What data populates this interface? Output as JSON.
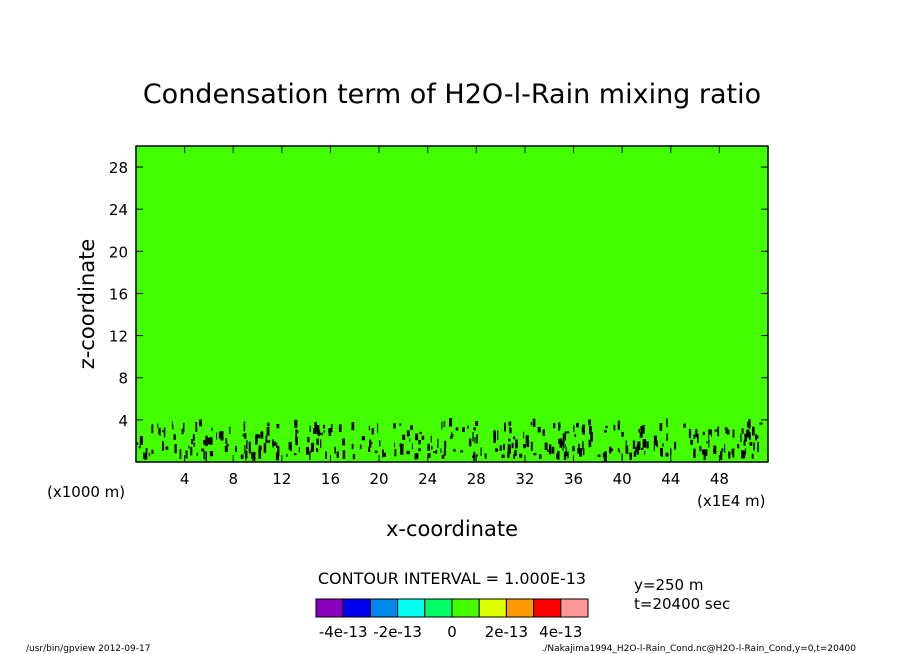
{
  "chart_data": {
    "type": "heatmap",
    "title": "Condensation term of H2O-l-Rain mixing ratio",
    "xlabel": "x-coordinate",
    "ylabel": "z-coordinate",
    "x_unit_left": "(x1000 m)",
    "x_unit_right": "(x1E4 m)",
    "xlim": [
      0,
      52
    ],
    "ylim": [
      0,
      30
    ],
    "x_ticks": [
      4,
      8,
      12,
      16,
      20,
      24,
      28,
      32,
      36,
      40,
      44,
      48
    ],
    "y_ticks": [
      4,
      8,
      12,
      16,
      20,
      24,
      28
    ],
    "field_value": 0,
    "field_color": "#44ff00",
    "cell_color": "#000000",
    "active_band_z": [
      0.5,
      3.8
    ],
    "contour_interval_label": "CONTOUR INTERVAL = 1.000E-13",
    "colorbar": {
      "colors": [
        "#8800bb",
        "#0000ee",
        "#0088ee",
        "#00ffee",
        "#00ff66",
        "#44ff00",
        "#ddff00",
        "#ff9900",
        "#ff0000",
        "#ff9999"
      ],
      "labels": [
        "-4e-13",
        "-2e-13",
        "0",
        "2e-13",
        "4e-13"
      ]
    },
    "info": {
      "y": "y=250 m",
      "t": "t=20400 sec"
    }
  },
  "footer": {
    "left": "/usr/bin/gpview  2012-09-17",
    "right": "./Nakajima1994_H2O-l-Rain_Cond.nc@H2O-l-Rain_Cond,y=0,t=20400"
  }
}
